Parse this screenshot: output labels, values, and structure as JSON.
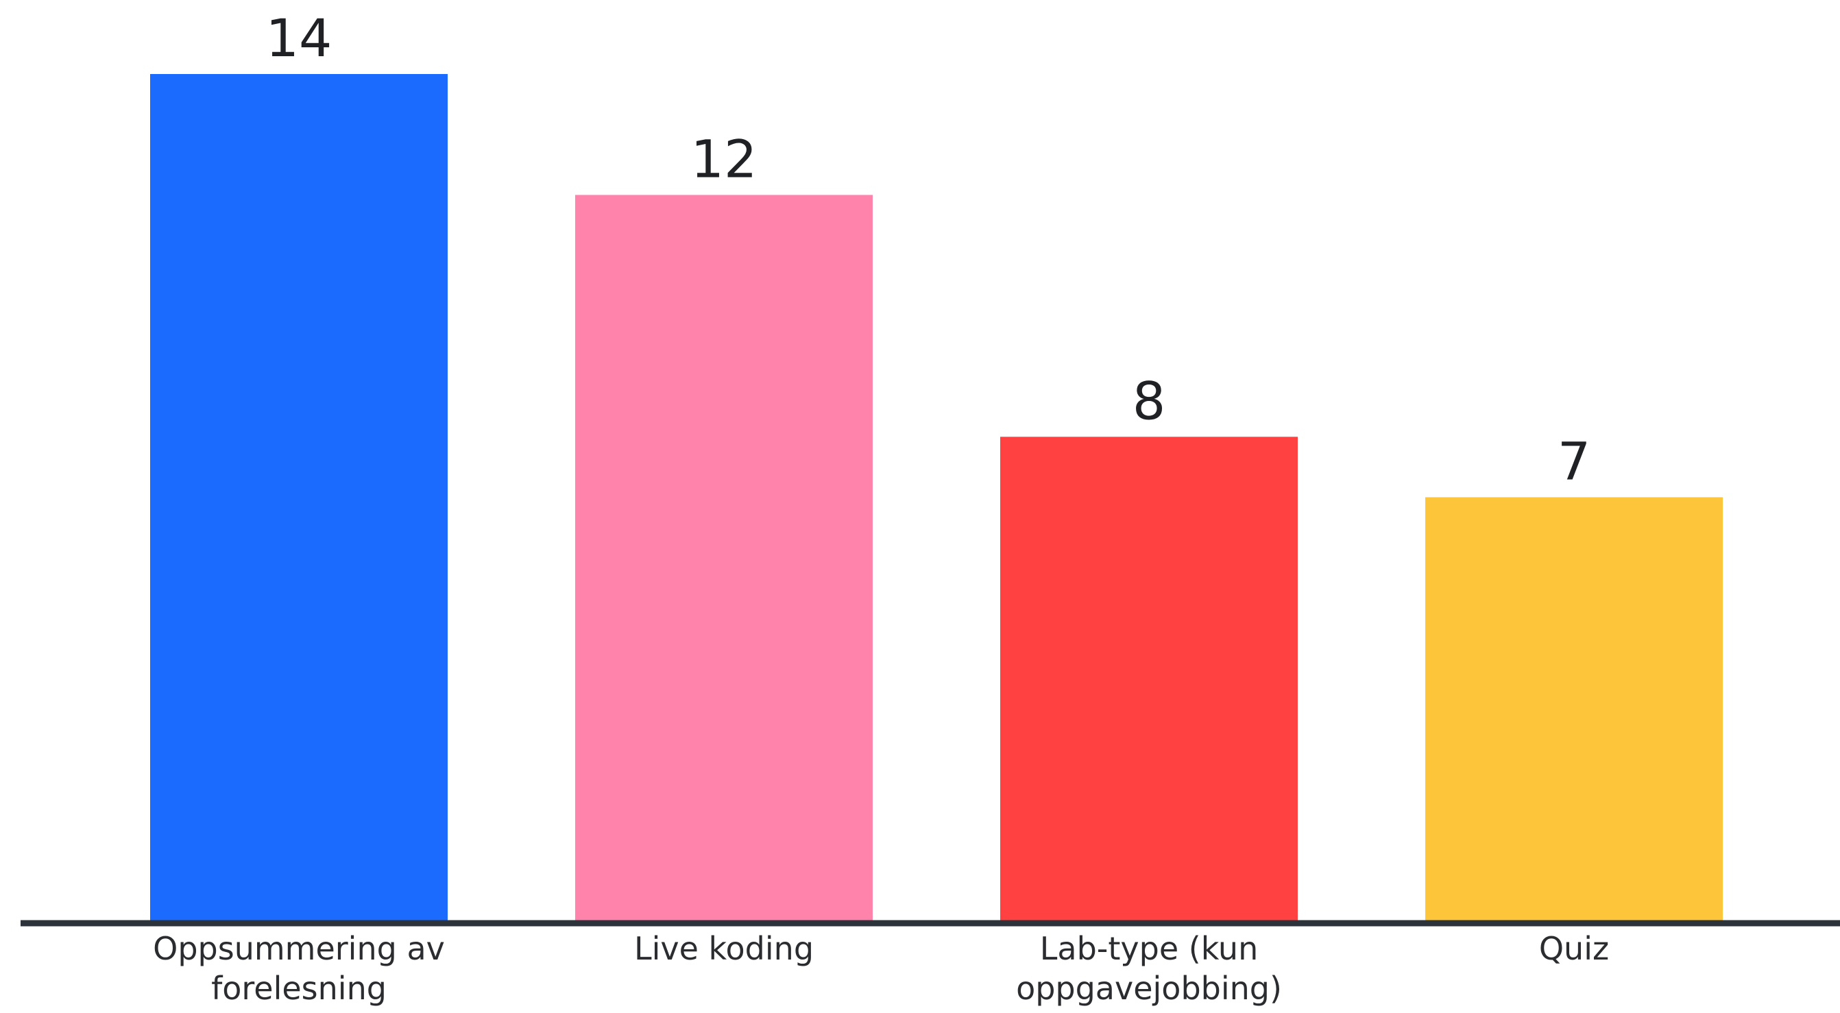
{
  "chart_data": {
    "type": "bar",
    "categories": [
      [
        "Oppsummering av",
        "forelesning"
      ],
      [
        "Live koding"
      ],
      [
        "Lab-type (kun",
        "oppgavejobbing)"
      ],
      [
        "Quiz"
      ]
    ],
    "values": [
      14,
      12,
      8,
      7
    ],
    "colors": [
      "#1b6bff",
      "#ff83ab",
      "#ff4141",
      "#fdc63a"
    ],
    "axis_color": "#2d333a",
    "ylim": [
      0,
      14
    ],
    "data_labels": true,
    "grid": false,
    "legend": "none"
  }
}
